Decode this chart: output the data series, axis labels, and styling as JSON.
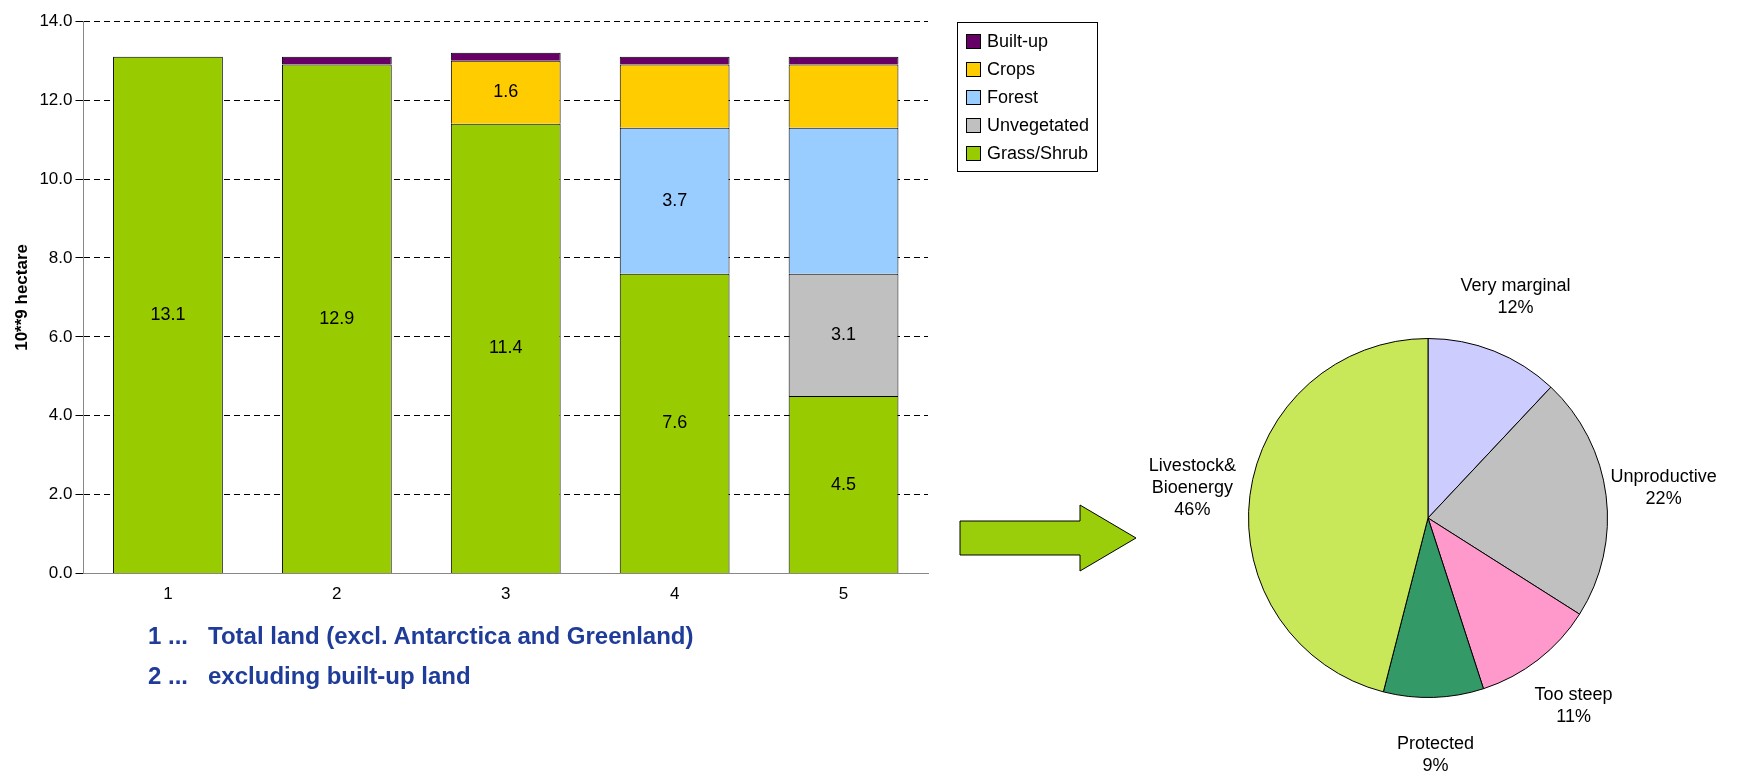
{
  "chart_data": [
    {
      "type": "bar",
      "stacked": true,
      "categories": [
        "1",
        "2",
        "3",
        "4",
        "5"
      ],
      "ylabel": "10**9 hectare",
      "ylim": [
        0,
        14
      ],
      "yticks": [
        {
          "value": 0,
          "label": "0.0"
        },
        {
          "value": 2,
          "label": "2.0"
        },
        {
          "value": 4,
          "label": "4.0"
        },
        {
          "value": 6,
          "label": "6.0"
        },
        {
          "value": 8,
          "label": "8.0"
        },
        {
          "value": 10,
          "label": "10.0"
        },
        {
          "value": 12,
          "label": "12.0"
        },
        {
          "value": 14,
          "label": "14.0"
        }
      ],
      "grid": "y",
      "legend": "top right",
      "series": [
        {
          "name": "Grass/Shrub",
          "color": "#99cc00",
          "values": [
            13.1,
            12.9,
            11.4,
            7.6,
            4.5
          ],
          "value_labels": [
            "13.1",
            "12.9",
            "11.4",
            "7.6",
            "4.5"
          ]
        },
        {
          "name": "Unvegetated",
          "color": "#c0c0c0",
          "values": [
            null,
            null,
            null,
            null,
            3.1
          ],
          "value_labels": [
            null,
            null,
            null,
            null,
            "3.1"
          ]
        },
        {
          "name": "Forest",
          "color": "#99ccff",
          "values": [
            null,
            null,
            null,
            3.7,
            3.7
          ],
          "value_labels": [
            null,
            null,
            null,
            "3.7",
            null
          ]
        },
        {
          "name": "Crops",
          "color": "#ffcc00",
          "values": [
            null,
            null,
            1.6,
            1.6,
            1.6
          ],
          "value_labels": [
            null,
            null,
            "1.6",
            null,
            null
          ]
        },
        {
          "name": "Built-up",
          "color": "#660066",
          "values": [
            null,
            0.2,
            0.2,
            0.2,
            0.2
          ]
        }
      ],
      "annotations": [
        "1 ...   Total land (excl. Antarctica and Greenland)",
        "2 ...   excluding built-up land"
      ]
    },
    {
      "type": "pie",
      "categories": [
        "Very marginal",
        "Unproductive",
        "Too steep",
        "Protected",
        "Livestock&\nBioenergy"
      ],
      "values": [
        12,
        22,
        11,
        9,
        46
      ],
      "value_labels": [
        "12%",
        "22%",
        "11%",
        "9%",
        "46%"
      ],
      "colors": [
        "#ccccff",
        "#c0c0c0",
        "#ff99cc",
        "#339966",
        "#c8e85a"
      ],
      "data_labels": true
    }
  ]
}
